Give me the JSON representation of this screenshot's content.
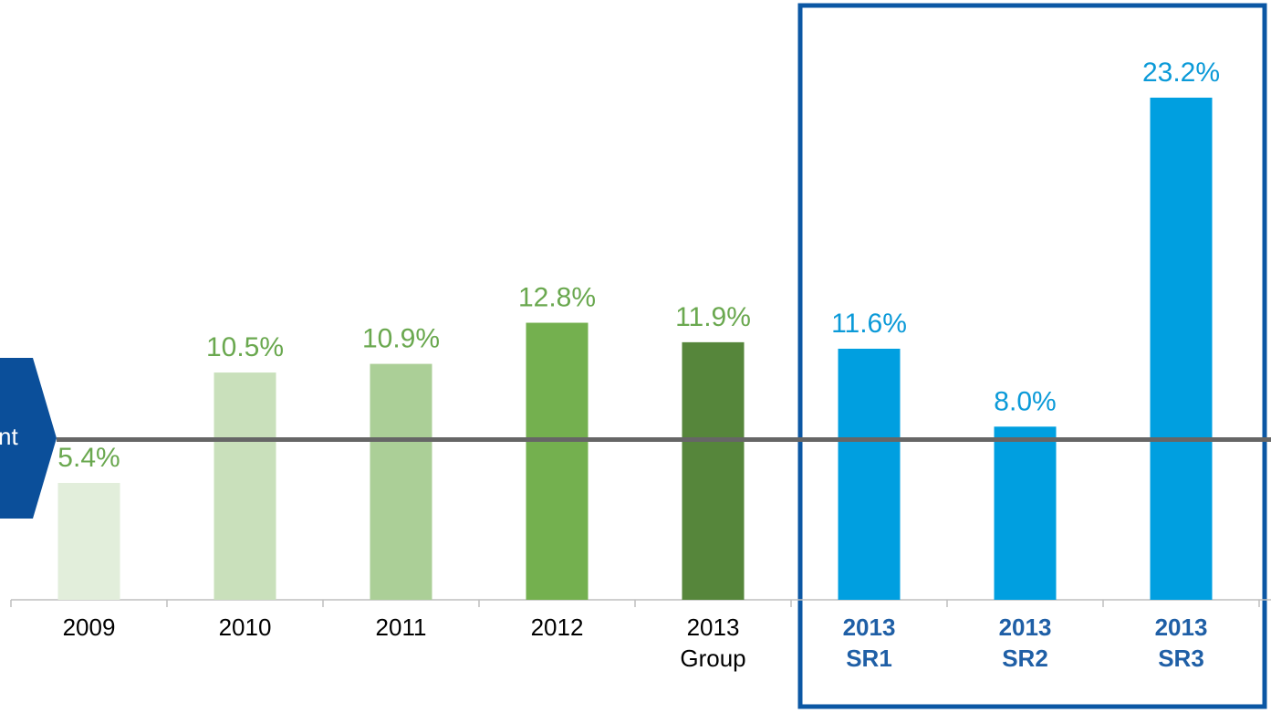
{
  "chart_data": {
    "type": "bar",
    "categories": [
      "2009",
      "2010",
      "2011",
      "2012",
      "2013\nGroup",
      "2013\nSR1",
      "2013\nSR2",
      "2013\nSR3"
    ],
    "values": [
      5.4,
      10.5,
      10.9,
      12.8,
      11.9,
      11.6,
      8.0,
      23.2
    ],
    "value_labels": [
      "5.4%",
      "10.5%",
      "10.9%",
      "12.8%",
      "11.9%",
      "11.6%",
      "8.0%",
      "23.2%"
    ],
    "colors": [
      "#e2eedb",
      "#c9e0bb",
      "#abcf97",
      "#74b04f",
      "#56863b",
      "#009fe0",
      "#009fe0",
      "#009fe0"
    ],
    "label_colors": [
      "#6aa84f",
      "#6aa84f",
      "#6aa84f",
      "#6aa84f",
      "#6aa84f",
      "#0b9ad8",
      "#0b9ad8",
      "#0b9ad8"
    ],
    "category_colors": [
      "#000000",
      "#000000",
      "#000000",
      "#000000",
      "#000000",
      "#1f5fa6",
      "#1f5fa6",
      "#1f5fa6"
    ],
    "ylim": [
      0,
      24
    ],
    "reference_line": {
      "value": 7.4,
      "label": "nt",
      "color": "#666666"
    }
  }
}
